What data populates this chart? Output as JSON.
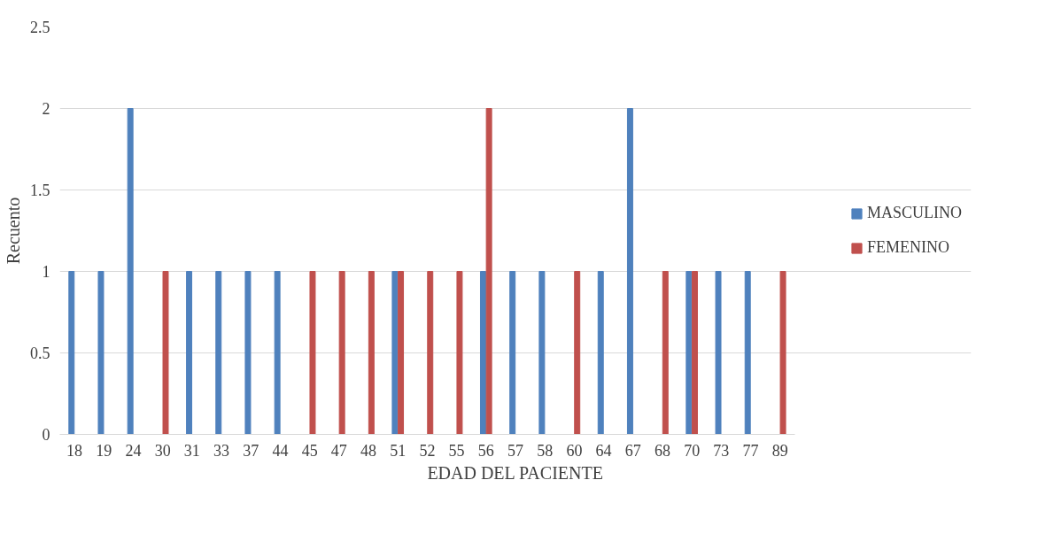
{
  "chart_data": {
    "type": "bar",
    "xlabel": "EDAD DEL PACIENTE",
    "ylabel": "Recuento",
    "categories": [
      "18",
      "19",
      "24",
      "30",
      "31",
      "33",
      "37",
      "44",
      "45",
      "47",
      "48",
      "51",
      "52",
      "55",
      "56",
      "57",
      "58",
      "60",
      "64",
      "67",
      "68",
      "70",
      "73",
      "77",
      "89"
    ],
    "series": [
      {
        "name": "MASCULINO",
        "color": "#4f81bd",
        "values": [
          1,
          1,
          2,
          null,
          1,
          1,
          1,
          1,
          null,
          null,
          null,
          1,
          null,
          null,
          1,
          1,
          1,
          null,
          1,
          2,
          null,
          1,
          1,
          1,
          null
        ]
      },
      {
        "name": "FEMENINO",
        "color": "#c0504d",
        "values": [
          null,
          null,
          null,
          1,
          null,
          null,
          null,
          null,
          1,
          1,
          1,
          1,
          1,
          1,
          2,
          null,
          null,
          1,
          null,
          null,
          1,
          1,
          null,
          null,
          1
        ]
      }
    ],
    "ylim": [
      0,
      2.5
    ],
    "yticks": [
      0,
      0.5,
      1,
      1.5,
      2,
      2.5
    ],
    "grid": "y",
    "legend": "right"
  }
}
